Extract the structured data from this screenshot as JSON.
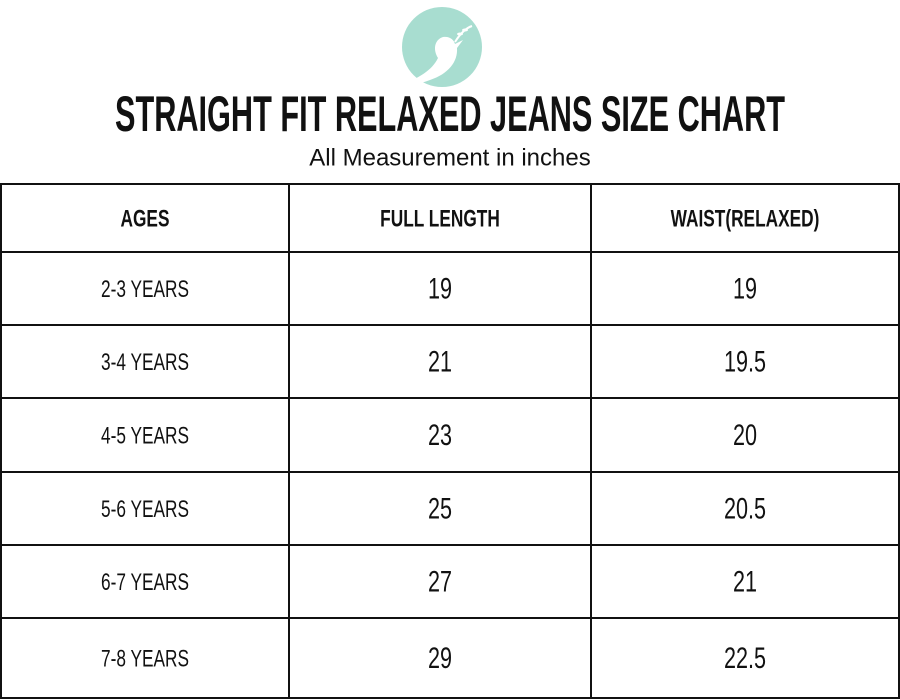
{
  "header": {
    "title": "STRAIGHT FIT RELAXED JEANS SIZE CHART",
    "subtitle": "All Measurement in inches"
  },
  "table": {
    "columns": [
      "AGES",
      "FULL LENGTH",
      "WAIST(RELAXED)"
    ],
    "rows": [
      [
        "2-3 YEARS",
        19,
        19
      ],
      [
        "3-4 YEARS",
        21,
        19.5
      ],
      [
        "4-5 YEARS",
        23,
        20
      ],
      [
        "5-6 YEARS",
        25,
        20.5
      ],
      [
        "6-7 YEARS",
        27,
        21
      ],
      [
        "7-8 YEARS",
        29,
        22.5
      ]
    ]
  }
}
